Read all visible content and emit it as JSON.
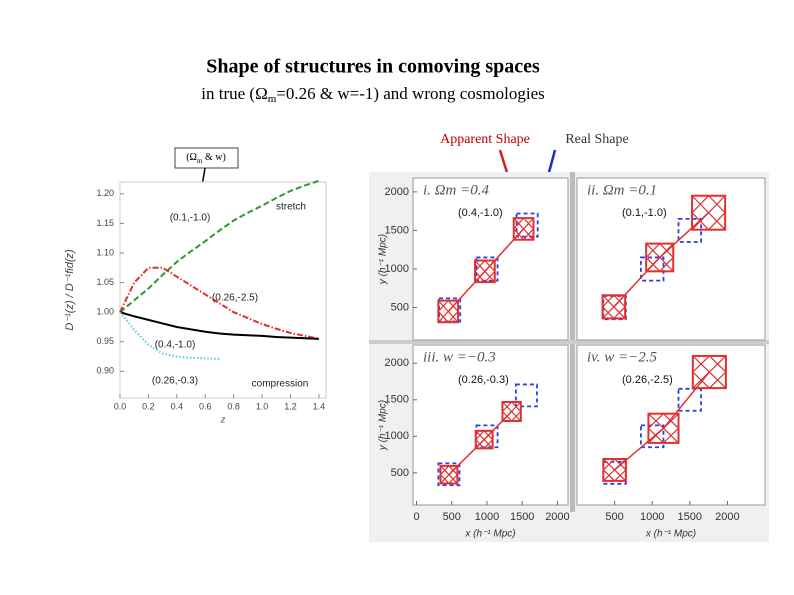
{
  "slide": {
    "title": "Shape of structures in comoving spaces",
    "subtitle": [
      "in true (Ω",
      "m",
      "=0.26 & w=-1) and wrong cosmologies"
    ],
    "legend_apparent": "Apparent Shape",
    "legend_real": "Real Shape",
    "param_box": [
      "(Ω",
      "m",
      " & w)"
    ]
  },
  "chart_data": [
    {
      "type": "line",
      "xlabel": "z",
      "ylabel": "D⁻¹(z) / D⁻¹fid(z)",
      "xlim": [
        0,
        1.45
      ],
      "ylim": [
        0.855,
        1.22
      ],
      "xticks": [
        {
          "value": 0,
          "label": "0.0"
        },
        0.2,
        0.4,
        0.6,
        0.8,
        {
          "value": 1,
          "label": "1.0"
        },
        1.2,
        1.4
      ],
      "yticks": [
        {
          "value": 0.9,
          "label": "0.90"
        },
        0.95,
        {
          "value": 1,
          "label": "1.00"
        },
        1.05,
        {
          "value": 1.1,
          "label": "1.10"
        },
        1.15,
        {
          "value": 1.2,
          "label": "1.20"
        }
      ],
      "x": [
        0,
        0.1,
        0.2,
        0.3,
        0.4,
        0.5,
        0.6,
        0.7,
        0.8,
        0.9,
        1.0,
        1.1,
        1.2,
        1.3,
        1.4
      ],
      "series": [
        {
          "name": "(0.1,-1.0)",
          "color": "#2a9a2a",
          "style": "dashed",
          "values": [
            1.0,
            1.02,
            1.04,
            1.063,
            1.085,
            1.103,
            1.12,
            1.138,
            1.155,
            1.168,
            1.18,
            1.193,
            1.205,
            1.214,
            1.222
          ]
        },
        {
          "name": "(0.26,-2.5)",
          "color": "#e0302a",
          "style": "dashdot",
          "values": [
            1.0,
            1.05,
            1.075,
            1.075,
            1.06,
            1.045,
            1.03,
            1.015,
            1.0,
            0.99,
            0.98,
            0.972,
            0.965,
            0.96,
            0.955
          ]
        },
        {
          "name": "(0.4,-1.0)",
          "color": "#000000",
          "style": "solid",
          "values": [
            1.0,
            0.993,
            0.987,
            0.981,
            0.975,
            0.971,
            0.967,
            0.964,
            0.962,
            0.961,
            0.96,
            0.958,
            0.957,
            0.956,
            0.955
          ]
        },
        {
          "name": "(0.26,-0.3)",
          "color": "#5bc8e8",
          "style": "dotted",
          "values": [
            1.0,
            0.97,
            0.945,
            0.93,
            0.925,
            0.923,
            0.922,
            0.921,
            null,
            null,
            null,
            null,
            null,
            null,
            null
          ]
        }
      ],
      "annotations": [
        "stretch",
        "compression"
      ]
    },
    {
      "type": "shapes",
      "title": "i. Ωm =0.4",
      "annotation": "(0.4,-1.0)",
      "xlim": [
        -50,
        2150
      ],
      "ylim": [
        80,
        2180
      ],
      "yticks": [
        500,
        1000,
        1500,
        2000
      ],
      "ylabel": "y (h⁻¹ Mpc)",
      "apparent": {
        "color": "#e03030",
        "x": [
          450,
          970,
          1520
        ],
        "y": [
          450,
          970,
          1520
        ],
        "half": [
          140,
          140,
          140
        ]
      },
      "real": {
        "color": "#2f3fe0",
        "x": [
          470,
          1000,
          1570
        ],
        "y": [
          470,
          1000,
          1570
        ],
        "half": [
          150,
          150,
          150
        ]
      }
    },
    {
      "type": "shapes",
      "title": "ii. Ωm =0.1",
      "annotation": "(0.1,-1.0)",
      "xlim": [
        0,
        2500
      ],
      "ylim": [
        80,
        2180
      ],
      "apparent": {
        "color": "#e03030",
        "x": [
          490,
          1100,
          1750
        ],
        "y": [
          510,
          1150,
          1730
        ],
        "half": [
          150,
          180,
          220
        ]
      },
      "real": {
        "color": "#2f3fe0",
        "x": [
          500,
          1000,
          1500
        ],
        "y": [
          500,
          1000,
          1500
        ],
        "half": [
          150,
          150,
          150
        ]
      }
    },
    {
      "type": "shapes",
      "title": "iii. w =−0.3",
      "annotation": "(0.26,-0.3)",
      "xlim": [
        -50,
        2150
      ],
      "ylim": [
        60,
        2250
      ],
      "xticks": [
        0,
        500,
        1000,
        1500,
        2000
      ],
      "yticks": [
        500,
        1000,
        1500,
        2000
      ],
      "xlabel": "x (h⁻¹ Mpc)",
      "ylabel": "y (h⁻¹ Mpc)",
      "apparent": {
        "color": "#e03030",
        "x": [
          460,
          960,
          1350
        ],
        "y": [
          475,
          955,
          1340
        ],
        "half": [
          120,
          120,
          130
        ]
      },
      "real": {
        "color": "#2f3fe0",
        "x": [
          460,
          1000,
          1560
        ],
        "y": [
          480,
          1000,
          1560
        ],
        "half": [
          150,
          150,
          150
        ]
      }
    },
    {
      "type": "shapes",
      "title": "iv. w =−2.5",
      "annotation": "(0.26,-2.5)",
      "xlim": [
        0,
        2500
      ],
      "ylim": [
        60,
        2250
      ],
      "xticks": [
        500,
        1000,
        1500,
        2000
      ],
      "xlabel": "x (h⁻¹ Mpc)",
      "apparent": {
        "color": "#e03030",
        "x": [
          500,
          1150,
          1760
        ],
        "y": [
          540,
          1110,
          1880
        ],
        "half": [
          150,
          200,
          220
        ]
      },
      "real": {
        "color": "#2f3fe0",
        "x": [
          500,
          1000,
          1500
        ],
        "y": [
          500,
          1000,
          1500
        ],
        "half": [
          150,
          150,
          150
        ]
      }
    }
  ]
}
